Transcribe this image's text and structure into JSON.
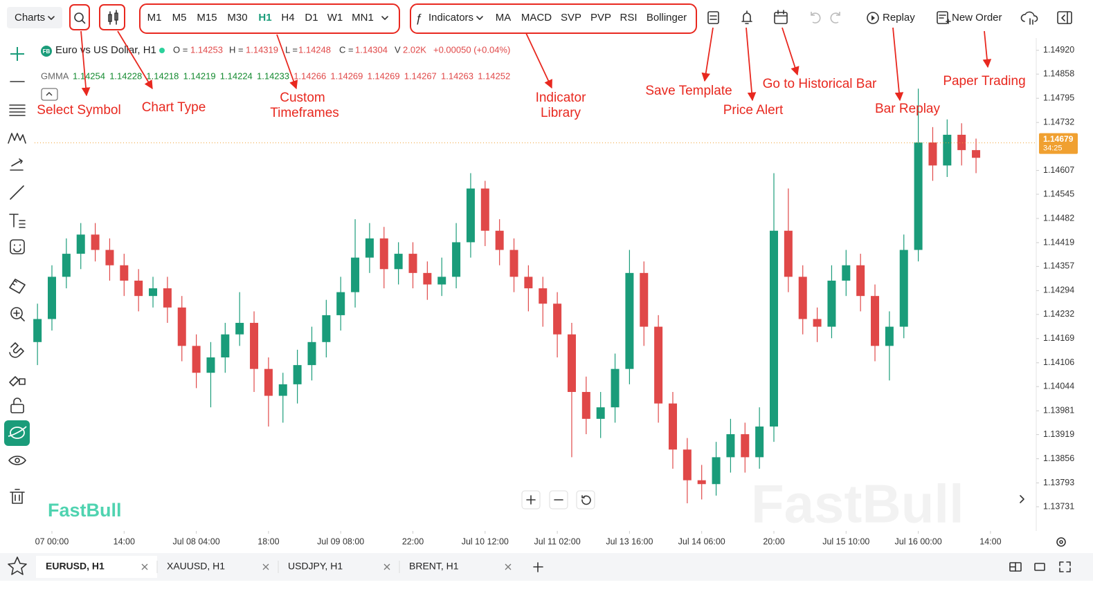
{
  "toolbar": {
    "charts": "Charts",
    "timeframes": [
      "M1",
      "M5",
      "M15",
      "M30",
      "H1",
      "H4",
      "D1",
      "W1",
      "MN1"
    ],
    "active_timeframe": "H1",
    "indicators": "Indicators",
    "quick_indicators": [
      "MA",
      "MACD",
      "SVP",
      "PVP",
      "RSI",
      "Bollinger"
    ],
    "replay": "Replay",
    "new_order": "New Order"
  },
  "legend": {
    "badge": "FB",
    "symbol": "Euro vs US Dollar, H1",
    "open_label": "O =",
    "open": 1.14253,
    "high_label": "H =",
    "high": 1.14319,
    "low_label": "L =",
    "low": 1.14248,
    "close_label": "C =",
    "close": 1.14304,
    "volume_label": "V",
    "volume": "2.02K",
    "change": "+0.00050 (+0.04%)",
    "gmma_label": "GMMA",
    "gmma_values": [
      1.14254,
      1.14228,
      1.14218,
      1.14219,
      1.14224,
      1.14233,
      1.14266,
      1.14269,
      1.14269,
      1.14267,
      1.14263,
      1.14252
    ]
  },
  "annotations": [
    "Select Symbol",
    "Chart Type",
    "Custom",
    "Timeframes",
    "Indicator",
    "Library",
    "Save Template",
    "Price Alert",
    "Go to Historical Bar",
    "Bar Replay",
    "Paper Trading"
  ],
  "watermarks": [
    "FastBull",
    "FastBull"
  ],
  "tabs": [
    "EURUSD, H1",
    "XAUUSD, H1",
    "USDJPY, H1",
    "BRENT, H1"
  ],
  "chart_data": {
    "type": "candlestick",
    "up_color": "#1a9c7a",
    "down_color": "#e04848",
    "ylim": [
      1.13668,
      1.14952
    ],
    "yticks": [
      {
        "value": 1.1492,
        "label": "1.14920"
      },
      1.14858,
      1.14795,
      1.14732,
      1.14607,
      1.14545,
      1.14482,
      1.14419,
      1.14357,
      1.14294,
      1.14232,
      1.14169,
      1.14106,
      1.14044,
      1.13981,
      1.13919,
      1.13856,
      1.13793,
      1.13731
    ],
    "xticks": [
      {
        "value": 1,
        "label": "07 00:00"
      },
      {
        "value": 6,
        "label": "14:00"
      },
      {
        "value": 11,
        "label": "Jul 08 04:00"
      },
      {
        "value": 16,
        "label": "18:00"
      },
      {
        "value": 21,
        "label": "Jul 09 08:00"
      },
      {
        "value": 26,
        "label": "22:00"
      },
      {
        "value": 31,
        "label": "Jul 10 12:00"
      },
      {
        "value": 36,
        "label": "Jul 11 02:00"
      },
      {
        "value": 41,
        "label": "Jul 13 16:00"
      },
      {
        "value": 46,
        "label": "Jul 14 06:00"
      },
      {
        "value": 51,
        "label": "20:00"
      },
      {
        "value": 56,
        "label": "Jul 15 10:00"
      },
      {
        "value": 61,
        "label": "Jul 16 00:00"
      },
      {
        "value": 66,
        "label": "14:00"
      }
    ],
    "last_price": 1.14679,
    "countdown": "34:25",
    "open": [
      1.1416,
      1.1422,
      1.1433,
      1.1439,
      1.1444,
      1.144,
      1.1436,
      1.1432,
      1.1428,
      1.143,
      1.1425,
      1.1415,
      1.1408,
      1.1412,
      1.1418,
      1.1421,
      1.1409,
      1.1402,
      1.1405,
      1.141,
      1.1416,
      1.1423,
      1.1429,
      1.1438,
      1.1443,
      1.1435,
      1.1439,
      1.1434,
      1.1431,
      1.1433,
      1.1442,
      1.1456,
      1.1445,
      1.144,
      1.1433,
      1.143,
      1.1426,
      1.1418,
      1.1403,
      1.1396,
      1.1399,
      1.1409,
      1.1434,
      1.142,
      1.14,
      1.1388,
      1.138,
      1.1379,
      1.1386,
      1.1392,
      1.1386,
      1.1394,
      1.1445,
      1.1433,
      1.1422,
      1.142,
      1.1432,
      1.1436,
      1.1428,
      1.1415,
      1.142,
      1.144,
      1.1468,
      1.1462,
      1.147,
      1.1466
    ],
    "high": [
      1.1426,
      1.1436,
      1.1443,
      1.1447,
      1.1447,
      1.1443,
      1.1439,
      1.1435,
      1.1433,
      1.1433,
      1.1428,
      1.1418,
      1.1416,
      1.1421,
      1.1429,
      1.1424,
      1.1412,
      1.1408,
      1.1414,
      1.142,
      1.1427,
      1.1433,
      1.1448,
      1.1447,
      1.1446,
      1.1442,
      1.1442,
      1.1437,
      1.1438,
      1.1447,
      1.146,
      1.1458,
      1.1448,
      1.1443,
      1.1436,
      1.1433,
      1.1429,
      1.1421,
      1.1407,
      1.1403,
      1.1413,
      1.144,
      1.1437,
      1.1423,
      1.1403,
      1.1391,
      1.1384,
      1.139,
      1.1396,
      1.1395,
      1.1399,
      1.146,
      1.1456,
      1.1436,
      1.1425,
      1.1436,
      1.144,
      1.1439,
      1.1431,
      1.1424,
      1.1444,
      1.1482,
      1.1472,
      1.1474,
      1.1473,
      1.1469
    ],
    "low": [
      1.141,
      1.1419,
      1.143,
      1.1435,
      1.1437,
      1.1432,
      1.1428,
      1.1424,
      1.1425,
      1.1421,
      1.1411,
      1.1404,
      1.1399,
      1.1408,
      1.1415,
      1.1403,
      1.1394,
      1.1395,
      1.14,
      1.1406,
      1.1412,
      1.1419,
      1.1425,
      1.1434,
      1.143,
      1.1431,
      1.143,
      1.1427,
      1.1428,
      1.143,
      1.1438,
      1.1441,
      1.1436,
      1.1429,
      1.1424,
      1.142,
      1.1412,
      1.1386,
      1.1392,
      1.1391,
      1.1395,
      1.1405,
      1.1415,
      1.1395,
      1.1383,
      1.1374,
      1.1375,
      1.1376,
      1.1382,
      1.1382,
      1.1383,
      1.139,
      1.1429,
      1.1418,
      1.1416,
      1.1417,
      1.1428,
      1.1424,
      1.1411,
      1.1406,
      1.1417,
      1.1437,
      1.1458,
      1.1459,
      1.1462,
      1.146
    ],
    "close": [
      1.1422,
      1.1433,
      1.1439,
      1.1444,
      1.144,
      1.1436,
      1.1432,
      1.1428,
      1.143,
      1.1425,
      1.1415,
      1.1408,
      1.1412,
      1.1418,
      1.1421,
      1.1409,
      1.1402,
      1.1405,
      1.141,
      1.1416,
      1.1423,
      1.1429,
      1.1438,
      1.1443,
      1.1435,
      1.1439,
      1.1434,
      1.1431,
      1.1433,
      1.1442,
      1.1456,
      1.1445,
      1.144,
      1.1433,
      1.143,
      1.1426,
      1.1418,
      1.1403,
      1.1396,
      1.1399,
      1.1409,
      1.1434,
      1.142,
      1.14,
      1.1388,
      1.138,
      1.1379,
      1.1386,
      1.1392,
      1.1386,
      1.1394,
      1.1445,
      1.1433,
      1.1422,
      1.142,
      1.1432,
      1.1436,
      1.1428,
      1.1415,
      1.142,
      1.144,
      1.1468,
      1.1462,
      1.147,
      1.1466,
      1.1464
    ]
  }
}
